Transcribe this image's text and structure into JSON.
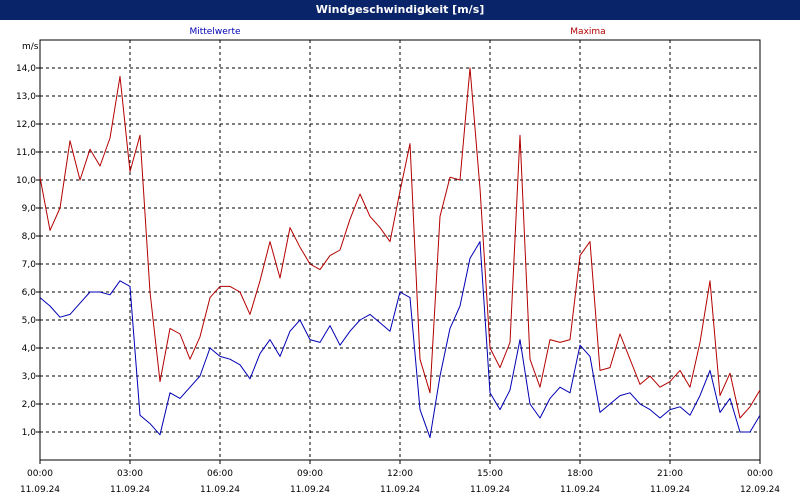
{
  "window": {
    "title": "Windgeschwindigkeit [m/s]"
  },
  "chart_data": {
    "type": "line",
    "title": "Windgeschwindigkeit [m/s]",
    "ylabel": "m/s",
    "xlabel": "",
    "ylim": [
      0,
      15
    ],
    "xlim": [
      "11.09.24 00:00",
      "12.09.24 00:00"
    ],
    "grid": true,
    "legend": "top",
    "y_ticks": [
      "1,0",
      "2,0",
      "3,0",
      "4,0",
      "5,0",
      "6,0",
      "7,0",
      "8,0",
      "9,0",
      "10,0",
      "11,0",
      "12,0",
      "13,0",
      "14,0"
    ],
    "x_ticks": [
      {
        "time": "00:00",
        "date": "11.09.24"
      },
      {
        "time": "03:00",
        "date": "11.09.24"
      },
      {
        "time": "06:00",
        "date": "11.09.24"
      },
      {
        "time": "09:00",
        "date": "11.09.24"
      },
      {
        "time": "12:00",
        "date": "11.09.24"
      },
      {
        "time": "15:00",
        "date": "11.09.24"
      },
      {
        "time": "18:00",
        "date": "11.09.24"
      },
      {
        "time": "21:00",
        "date": "11.09.24"
      },
      {
        "time": "00:00",
        "date": "12.09.24"
      }
    ],
    "series": [
      {
        "name": "Mittelwerte",
        "color": "#0000b4",
        "x": [
          "00:00",
          "00:20",
          "00:40",
          "01:00",
          "01:20",
          "01:40",
          "02:00",
          "02:20",
          "02:40",
          "03:00",
          "03:20",
          "03:40",
          "04:00",
          "04:20",
          "04:40",
          "05:00",
          "05:20",
          "05:40",
          "06:00",
          "06:20",
          "06:40",
          "07:00",
          "07:20",
          "07:40",
          "08:00",
          "08:20",
          "08:40",
          "09:00",
          "09:20",
          "09:40",
          "10:00",
          "10:20",
          "10:40",
          "11:00",
          "11:20",
          "11:40",
          "12:00",
          "12:20",
          "12:40",
          "13:00",
          "13:20",
          "13:40",
          "14:00",
          "14:20",
          "14:40",
          "15:00",
          "15:20",
          "15:40",
          "16:00",
          "16:20",
          "16:40",
          "17:00",
          "17:20",
          "17:40",
          "18:00",
          "18:20",
          "18:40",
          "19:00",
          "19:20",
          "19:40",
          "20:00",
          "20:20",
          "20:40",
          "21:00",
          "21:20",
          "21:40",
          "22:00",
          "22:20",
          "22:40",
          "23:00",
          "23:20",
          "23:40",
          "24:00"
        ],
        "y": [
          5.8,
          5.5,
          5.1,
          5.2,
          5.6,
          6.0,
          6.0,
          5.9,
          6.4,
          6.2,
          1.6,
          1.3,
          0.9,
          2.4,
          2.2,
          2.6,
          3.0,
          4.0,
          3.7,
          3.6,
          3.4,
          2.9,
          3.8,
          4.3,
          3.7,
          4.6,
          5.0,
          4.3,
          4.2,
          4.8,
          4.1,
          4.6,
          5.0,
          5.2,
          4.9,
          4.6,
          6.0,
          5.8,
          1.8,
          0.8,
          3.0,
          4.7,
          5.5,
          7.2,
          7.8,
          2.4,
          1.8,
          2.5,
          4.3,
          2.0,
          1.5,
          2.2,
          2.6,
          2.4,
          4.1,
          3.7,
          1.7,
          2.0,
          2.3,
          2.4,
          2.0,
          1.8,
          1.5,
          1.8,
          1.9,
          1.6,
          2.3,
          3.2,
          1.7,
          2.2,
          1.0,
          1.0,
          1.6
        ]
      },
      {
        "name": "Maxima",
        "color": "#b40000",
        "x": [
          "00:00",
          "00:20",
          "00:40",
          "01:00",
          "01:20",
          "01:40",
          "02:00",
          "02:20",
          "02:40",
          "03:00",
          "03:20",
          "03:40",
          "04:00",
          "04:20",
          "04:40",
          "05:00",
          "05:20",
          "05:40",
          "06:00",
          "06:20",
          "06:40",
          "07:00",
          "07:20",
          "07:40",
          "08:00",
          "08:20",
          "08:40",
          "09:00",
          "09:20",
          "09:40",
          "10:00",
          "10:20",
          "10:40",
          "11:00",
          "11:20",
          "11:40",
          "12:00",
          "12:20",
          "12:40",
          "13:00",
          "13:20",
          "13:40",
          "14:00",
          "14:20",
          "14:40",
          "15:00",
          "15:20",
          "15:40",
          "16:00",
          "16:20",
          "16:40",
          "17:00",
          "17:20",
          "17:40",
          "18:00",
          "18:20",
          "18:40",
          "19:00",
          "19:20",
          "19:40",
          "20:00",
          "20:20",
          "20:40",
          "21:00",
          "21:20",
          "21:40",
          "22:00",
          "22:20",
          "22:40",
          "23:00",
          "23:20",
          "23:40",
          "24:00"
        ],
        "y": [
          10.1,
          8.2,
          9.0,
          11.4,
          10.0,
          11.1,
          10.5,
          11.5,
          13.7,
          10.3,
          11.6,
          6.0,
          2.8,
          4.7,
          4.5,
          3.6,
          4.4,
          5.8,
          6.2,
          6.2,
          6.0,
          5.2,
          6.4,
          7.8,
          6.5,
          8.3,
          7.6,
          7.0,
          6.8,
          7.3,
          7.5,
          8.6,
          9.5,
          8.7,
          8.3,
          7.8,
          9.6,
          11.3,
          3.6,
          2.4,
          8.7,
          10.1,
          10.0,
          14.0,
          9.7,
          4.0,
          3.3,
          4.2,
          11.6,
          3.6,
          2.6,
          4.3,
          4.2,
          4.3,
          7.3,
          7.8,
          3.2,
          3.3,
          4.5,
          3.6,
          2.7,
          3.0,
          2.6,
          2.8,
          3.2,
          2.6,
          4.2,
          6.4,
          2.3,
          3.1,
          1.5,
          1.9,
          2.5
        ]
      }
    ]
  }
}
